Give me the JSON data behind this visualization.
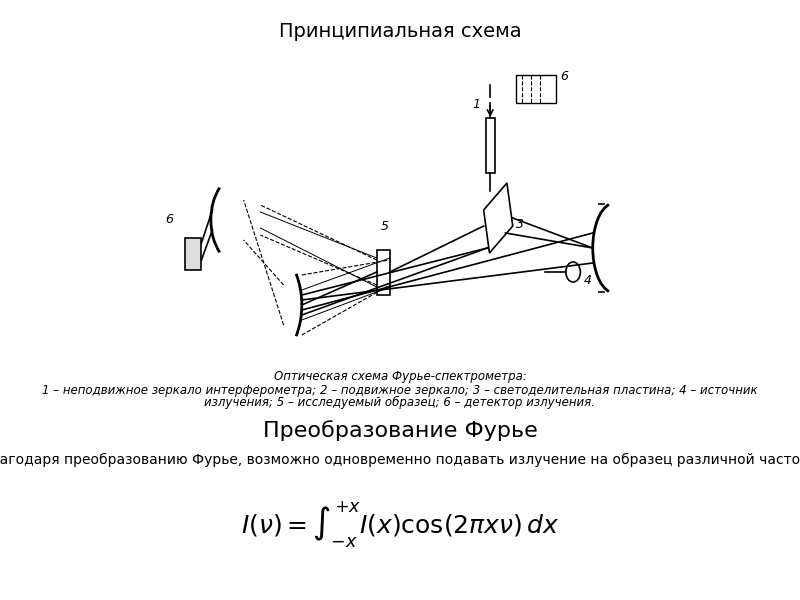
{
  "title1": "Принципиальная схема",
  "title2": "Преобразование Фурье",
  "caption_title": "Оптическая схема Фурье-спектрометра:",
  "caption_line1": "1 – неподвижное зеркало интерферометра; 2 – подвижное зеркало; 3 – светоделительная пластина; 4 – источник",
  "caption_line2": "излучения; 5 – исследуемый образец; 6 – детектор излучения.",
  "description": "Благодаря преобразованию Фурье, возможно одновременно подавать излучение на образец различной частоты",
  "formula": "$I(v) = \\int_{-x}^{+x} I(x)\\cos(2\\pi x v)\\,dx$",
  "bg_color": "#ffffff",
  "line_color": "#000000",
  "text_color": "#000000",
  "title1_fontsize": 14,
  "title2_fontsize": 16,
  "caption_fontsize": 8.5,
  "desc_fontsize": 10,
  "formula_fontsize": 18
}
